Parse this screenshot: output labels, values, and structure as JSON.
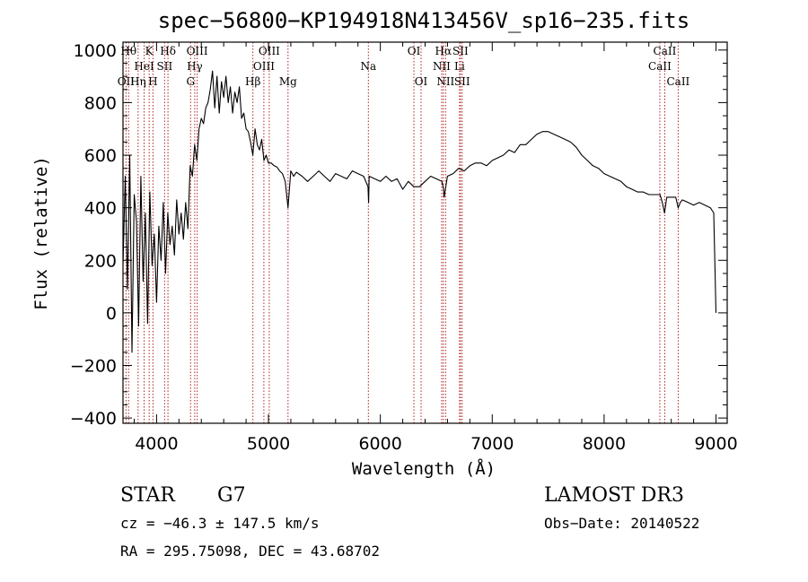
{
  "chart_data": {
    "type": "line",
    "title": "spec−56800−KP194918N413456V_sp16−235.fits",
    "xlabel": "Wavelength (Å)",
    "ylabel": "Flux (relative)",
    "xlim": [
      3700,
      9100
    ],
    "ylim": [
      -420,
      1030
    ],
    "xticks": [
      4000,
      5000,
      6000,
      7000,
      8000,
      9000
    ],
    "xtick_labels": [
      "4000",
      "5000",
      "6000",
      "7000",
      "8000",
      "9000"
    ],
    "yticks": [
      -400,
      -200,
      0,
      200,
      400,
      600,
      800,
      1000
    ],
    "ytick_labels": [
      "−400",
      "−200",
      "0",
      "200",
      "400",
      "600",
      "800",
      "1000"
    ],
    "grid": false,
    "legend": "none",
    "line_color": "#000000",
    "marker_color": "#b22222",
    "series": [
      {
        "x": [
          3700,
          3720,
          3740,
          3760,
          3780,
          3800,
          3820,
          3840,
          3860,
          3880,
          3900,
          3920,
          3940,
          3960,
          3980,
          4000,
          4020,
          4040,
          4060,
          4080,
          4100,
          4120,
          4140,
          4160,
          4180,
          4200,
          4220,
          4240,
          4260,
          4280,
          4300,
          4320,
          4340,
          4360,
          4380,
          4400,
          4420,
          4440,
          4460,
          4480,
          4500,
          4520,
          4540,
          4560,
          4580,
          4600,
          4620,
          4640,
          4660,
          4680,
          4700,
          4720,
          4740,
          4760,
          4780,
          4800,
          4820,
          4840,
          4860,
          4880,
          4900,
          4920,
          4940,
          4960,
          4980,
          5000,
          5025,
          5050,
          5075,
          5100,
          5125,
          5150,
          5175,
          5200,
          5225,
          5250,
          5300,
          5350,
          5400,
          5450,
          5500,
          5550,
          5600,
          5650,
          5700,
          5750,
          5800,
          5850,
          5890,
          5895,
          5900,
          5950,
          6000,
          6050,
          6100,
          6150,
          6200,
          6250,
          6300,
          6350,
          6400,
          6450,
          6500,
          6550,
          6565,
          6570,
          6600,
          6650,
          6700,
          6750,
          6800,
          6850,
          6900,
          6950,
          7000,
          7050,
          7100,
          7150,
          7200,
          7250,
          7300,
          7350,
          7400,
          7450,
          7500,
          7550,
          7600,
          7650,
          7700,
          7750,
          7800,
          7850,
          7900,
          7950,
          8000,
          8050,
          8100,
          8150,
          8200,
          8250,
          8300,
          8350,
          8400,
          8450,
          8500,
          8520,
          8540,
          8560,
          8600,
          8640,
          8662,
          8680,
          8700,
          8750,
          8800,
          8850,
          8900,
          8950,
          8980,
          9000
        ],
        "values": [
          180,
          520,
          90,
          600,
          -150,
          450,
          350,
          -50,
          520,
          120,
          380,
          -40,
          460,
          180,
          300,
          40,
          330,
          200,
          420,
          150,
          380,
          260,
          330,
          220,
          430,
          300,
          380,
          280,
          420,
          320,
          560,
          520,
          640,
          580,
          700,
          740,
          720,
          780,
          800,
          850,
          920,
          780,
          900,
          760,
          880,
          820,
          900,
          800,
          860,
          760,
          840,
          800,
          860,
          740,
          760,
          700,
          690,
          650,
          600,
          700,
          640,
          620,
          660,
          580,
          600,
          570,
          570,
          560,
          555,
          540,
          530,
          500,
          400,
          540,
          520,
          535,
          520,
          500,
          520,
          540,
          520,
          500,
          530,
          520,
          510,
          540,
          530,
          520,
          480,
          420,
          520,
          510,
          500,
          520,
          500,
          510,
          470,
          500,
          480,
          480,
          500,
          520,
          510,
          500,
          470,
          440,
          520,
          530,
          550,
          540,
          560,
          570,
          570,
          560,
          580,
          590,
          600,
          620,
          610,
          640,
          640,
          660,
          680,
          690,
          690,
          680,
          670,
          660,
          650,
          630,
          600,
          580,
          560,
          550,
          530,
          520,
          510,
          500,
          480,
          470,
          460,
          460,
          450,
          450,
          450,
          420,
          380,
          440,
          440,
          440,
          400,
          420,
          430,
          420,
          410,
          420,
          410,
          400,
          380,
          0
        ]
      }
    ],
    "spectral_lines": [
      {
        "label": "OII",
        "x": 3727,
        "row": 3
      },
      {
        "label": "Hθ",
        "x": 3750,
        "row": 1
      },
      {
        "label": "Hη",
        "x": 3835,
        "row": 3
      },
      {
        "label": "K",
        "x": 3934,
        "row": 1
      },
      {
        "label": "HeI",
        "x": 3889,
        "row": 2
      },
      {
        "label": "H",
        "x": 3968,
        "row": 3
      },
      {
        "label": "SII",
        "x": 4072,
        "row": 2
      },
      {
        "label": "Hδ",
        "x": 4102,
        "row": 1
      },
      {
        "label": "OIII",
        "x": 4363,
        "row": 1
      },
      {
        "label": "Hγ",
        "x": 4341,
        "row": 2
      },
      {
        "label": "G",
        "x": 4304,
        "row": 3
      },
      {
        "label": "Hβ",
        "x": 4861,
        "row": 3
      },
      {
        "label": "OIII",
        "x": 4959,
        "row": 2
      },
      {
        "label": "OIII",
        "x": 5007,
        "row": 1
      },
      {
        "label": "Mg",
        "x": 5175,
        "row": 3
      },
      {
        "label": "Na",
        "x": 5893,
        "row": 2
      },
      {
        "label": "OI",
        "x": 6300,
        "row": 1
      },
      {
        "label": "OI",
        "x": 6364,
        "row": 3
      },
      {
        "label": "Hα",
        "x": 6563,
        "row": 1
      },
      {
        "label": "NII",
        "x": 6548,
        "row": 2
      },
      {
        "label": "NII",
        "x": 6583,
        "row": 3
      },
      {
        "label": "SII",
        "x": 6716,
        "row": 1
      },
      {
        "label": "Li",
        "x": 6708,
        "row": 2
      },
      {
        "label": "SII",
        "x": 6731,
        "row": 3
      },
      {
        "label": "CaII",
        "x": 8542,
        "row": 1
      },
      {
        "label": "CaII",
        "x": 8498,
        "row": 2
      },
      {
        "label": "CaII",
        "x": 8662,
        "row": 3
      }
    ]
  },
  "info": {
    "object_class": "STAR",
    "subclass": "G7",
    "cz": "cz = −46.3 ± 147.5 km/s",
    "coords": "RA = 295.75098, DEC =  43.68702",
    "survey": "LAMOST DR3",
    "obs_date": "Obs−Date: 20140522"
  }
}
